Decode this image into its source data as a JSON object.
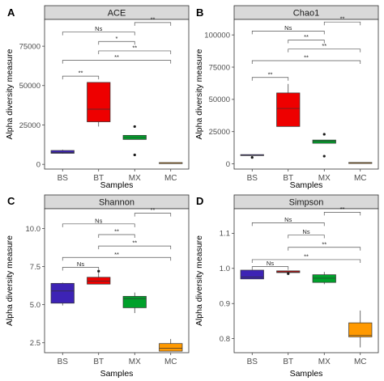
{
  "chart_data": [
    {
      "type": "box",
      "panel": "A",
      "title": "ACE",
      "xlabel": "Samples",
      "ylabel": "Alpha diversity measure",
      "categories": [
        "BS",
        "BT",
        "MX",
        "MC"
      ],
      "colors": [
        "#3d23b5",
        "#ee0000",
        "#00a12b",
        "#ff9900"
      ],
      "ylim": [
        -3000,
        92000
      ],
      "yticks": [
        0,
        25000,
        50000,
        75000
      ],
      "ytick_labels": [
        "0",
        "25000",
        "50000",
        "75000"
      ],
      "boxes": [
        {
          "min": 6800,
          "q1": 7000,
          "median": 7600,
          "q3": 8800,
          "max": 9300,
          "outliers": []
        },
        {
          "min": 24000,
          "q1": 27000,
          "median": 35000,
          "q3": 52000,
          "max": 52000,
          "outliers": []
        },
        {
          "min": 15800,
          "q1": 15800,
          "median": 17000,
          "q3": 18400,
          "max": 18400,
          "outliers": [
            24000,
            6000
          ]
        },
        {
          "min": 800,
          "q1": 900,
          "median": 1000,
          "q3": 1100,
          "max": 1200,
          "outliers": []
        }
      ],
      "comparisons": [
        {
          "from": "BS",
          "to": "BT",
          "label": "**",
          "y": 56000
        },
        {
          "from": "BS",
          "to": "MX",
          "label": "Ns",
          "y": 84000
        },
        {
          "from": "BT",
          "to": "MX",
          "label": "*",
          "y": 78000
        },
        {
          "from": "BT",
          "to": "MC",
          "label": "**",
          "y": 72000
        },
        {
          "from": "BS",
          "to": "MC",
          "label": "**",
          "y": 66000
        },
        {
          "from": "MX",
          "to": "MC",
          "label": "**",
          "y": 90000
        }
      ]
    },
    {
      "type": "box",
      "panel": "B",
      "title": "Chao1",
      "xlabel": "Samples",
      "ylabel": "Alpha diversity measure",
      "categories": [
        "BS",
        "BT",
        "MX",
        "MC"
      ],
      "colors": [
        "#3d23b5",
        "#ee0000",
        "#00a12b",
        "#ff9900"
      ],
      "ylim": [
        -4000,
        112000
      ],
      "yticks": [
        0,
        25000,
        50000,
        75000,
        100000
      ],
      "ytick_labels": [
        "0",
        "25000",
        "50000",
        "75000",
        "100000"
      ],
      "boxes": [
        {
          "min": 7000,
          "q1": 7000,
          "median": 7000,
          "q3": 7200,
          "max": 7200,
          "outliers": [
            5000
          ]
        },
        {
          "min": 29000,
          "q1": 29000,
          "median": 43000,
          "q3": 55000,
          "max": 62000,
          "outliers": []
        },
        {
          "min": 16000,
          "q1": 16000,
          "median": 17500,
          "q3": 18500,
          "max": 18500,
          "outliers": [
            23000,
            6000
          ]
        },
        {
          "min": 900,
          "q1": 900,
          "median": 1000,
          "q3": 1100,
          "max": 1100,
          "outliers": []
        }
      ],
      "comparisons": [
        {
          "from": "BS",
          "to": "BT",
          "label": "**",
          "y": 67000
        },
        {
          "from": "BS",
          "to": "MX",
          "label": "Ns",
          "y": 103000
        },
        {
          "from": "BT",
          "to": "MX",
          "label": "**",
          "y": 96000
        },
        {
          "from": "BT",
          "to": "MC",
          "label": "**",
          "y": 89000
        },
        {
          "from": "BS",
          "to": "MC",
          "label": "**",
          "y": 80000
        },
        {
          "from": "MX",
          "to": "MC",
          "label": "**",
          "y": 110000
        }
      ]
    },
    {
      "type": "box",
      "panel": "C",
      "title": "Shannon",
      "xlabel": "Samples",
      "ylabel": "Alpha diversity measure",
      "categories": [
        "BS",
        "BT",
        "MX",
        "MC"
      ],
      "colors": [
        "#3d23b5",
        "#ee0000",
        "#00a12b",
        "#ff9900"
      ],
      "ylim": [
        1.85,
        11.3
      ],
      "yticks": [
        2.5,
        5.0,
        7.5,
        10.0
      ],
      "ytick_labels": [
        "2.5",
        "5.0",
        "7.5",
        "10.0"
      ],
      "boxes": [
        {
          "min": 4.95,
          "q1": 5.1,
          "median": 5.9,
          "q3": 6.4,
          "max": 6.45,
          "outliers": []
        },
        {
          "min": 6.35,
          "q1": 6.35,
          "median": 6.55,
          "q3": 6.8,
          "max": 7.1,
          "outliers": [
            7.2
          ]
        },
        {
          "min": 4.45,
          "q1": 4.8,
          "median": 5.4,
          "q3": 5.55,
          "max": 5.8,
          "outliers": []
        },
        {
          "min": 1.95,
          "q1": 1.95,
          "median": 2.15,
          "q3": 2.45,
          "max": 2.75,
          "outliers": []
        }
      ],
      "comparisons": [
        {
          "from": "BS",
          "to": "BT",
          "label": "Ns",
          "y": 7.45
        },
        {
          "from": "BS",
          "to": "MX",
          "label": "Ns",
          "y": 10.3
        },
        {
          "from": "BT",
          "to": "MX",
          "label": "**",
          "y": 9.6
        },
        {
          "from": "BT",
          "to": "MC",
          "label": "**",
          "y": 8.85
        },
        {
          "from": "BS",
          "to": "MC",
          "label": "**",
          "y": 8.1
        },
        {
          "from": "MX",
          "to": "MC",
          "label": "**",
          "y": 11.0
        }
      ]
    },
    {
      "type": "box",
      "panel": "D",
      "title": "Simpson",
      "xlabel": "Samples",
      "ylabel": "Alpha diversity measure",
      "categories": [
        "BS",
        "BT",
        "MX",
        "MC"
      ],
      "colors": [
        "#3d23b5",
        "#ee0000",
        "#00a12b",
        "#ff9900"
      ],
      "ylim": [
        0.76,
        1.17
      ],
      "yticks": [
        0.8,
        0.9,
        1.0,
        1.1
      ],
      "ytick_labels": [
        "0.8",
        "0.9",
        "1.0",
        "1.1"
      ],
      "boxes": [
        {
          "min": 0.97,
          "q1": 0.97,
          "median": 0.975,
          "q3": 0.995,
          "max": 0.995,
          "outliers": []
        },
        {
          "min": 0.988,
          "q1": 0.988,
          "median": 0.99,
          "q3": 0.993,
          "max": 0.993,
          "outliers": [
            0.985
          ]
        },
        {
          "min": 0.955,
          "q1": 0.96,
          "median": 0.972,
          "q3": 0.982,
          "max": 0.99,
          "outliers": []
        },
        {
          "min": 0.775,
          "q1": 0.805,
          "median": 0.81,
          "q3": 0.845,
          "max": 0.88,
          "outliers": []
        }
      ],
      "comparisons": [
        {
          "from": "BS",
          "to": "BT",
          "label": "Ns",
          "y": 1.005
        },
        {
          "from": "BS",
          "to": "MX",
          "label": "Ns",
          "y": 1.13
        },
        {
          "from": "BT",
          "to": "MX",
          "label": "Ns",
          "y": 1.095
        },
        {
          "from": "BT",
          "to": "MC",
          "label": "**",
          "y": 1.06
        },
        {
          "from": "BS",
          "to": "MC",
          "label": "**",
          "y": 1.025
        },
        {
          "from": "MX",
          "to": "MC",
          "label": "**",
          "y": 1.16
        }
      ]
    }
  ]
}
